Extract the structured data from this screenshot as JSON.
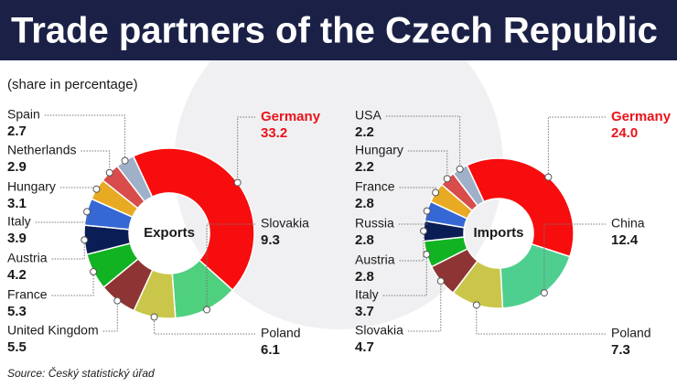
{
  "title": "Trade partners of the Czech Republic",
  "subtitle": "(share in percentage)",
  "source": "Source: Český statistický úřad",
  "chart_data": [
    {
      "type": "pie",
      "title": "Exports",
      "categories": [
        "Germany",
        "Slovakia",
        "Poland",
        "United Kingdom",
        "France",
        "Austria",
        "Italy",
        "Hungary",
        "Netherlands",
        "Spain"
      ],
      "values": [
        33.2,
        9.3,
        6.1,
        5.5,
        5.3,
        4.2,
        3.9,
        3.1,
        2.9,
        2.7
      ],
      "value_labels": [
        "33.2",
        "9.3",
        "6.1",
        "5.5",
        "5.3",
        "4.2",
        "3.9",
        "3.1",
        "2.9",
        "2.7"
      ],
      "colors": [
        "#f70d0d",
        "#4fd07e",
        "#c9c64a",
        "#8e3434",
        "#12b322",
        "#0b1d55",
        "#3568d4",
        "#e8aa22",
        "#d84c4c",
        "#9fb1c8"
      ]
    },
    {
      "type": "pie",
      "title": "Imports",
      "categories": [
        "Germany",
        "China",
        "Poland",
        "Slovakia",
        "Italy",
        "Austria",
        "Russia",
        "France",
        "Hungary",
        "USA"
      ],
      "values": [
        24.0,
        12.4,
        7.3,
        4.7,
        3.7,
        2.8,
        2.8,
        2.8,
        2.2,
        2.2
      ],
      "value_labels": [
        "24.0",
        "12.4",
        "7.3",
        "4.7",
        "3.7",
        "2.8",
        "2.8",
        "2.8",
        "2.2",
        "2.2"
      ],
      "colors": [
        "#f70d0d",
        "#4fcf8f",
        "#c9c64a",
        "#8e3434",
        "#12b322",
        "#0b1d55",
        "#3568d4",
        "#e8aa22",
        "#d84c4c",
        "#9fb1c8"
      ]
    }
  ]
}
